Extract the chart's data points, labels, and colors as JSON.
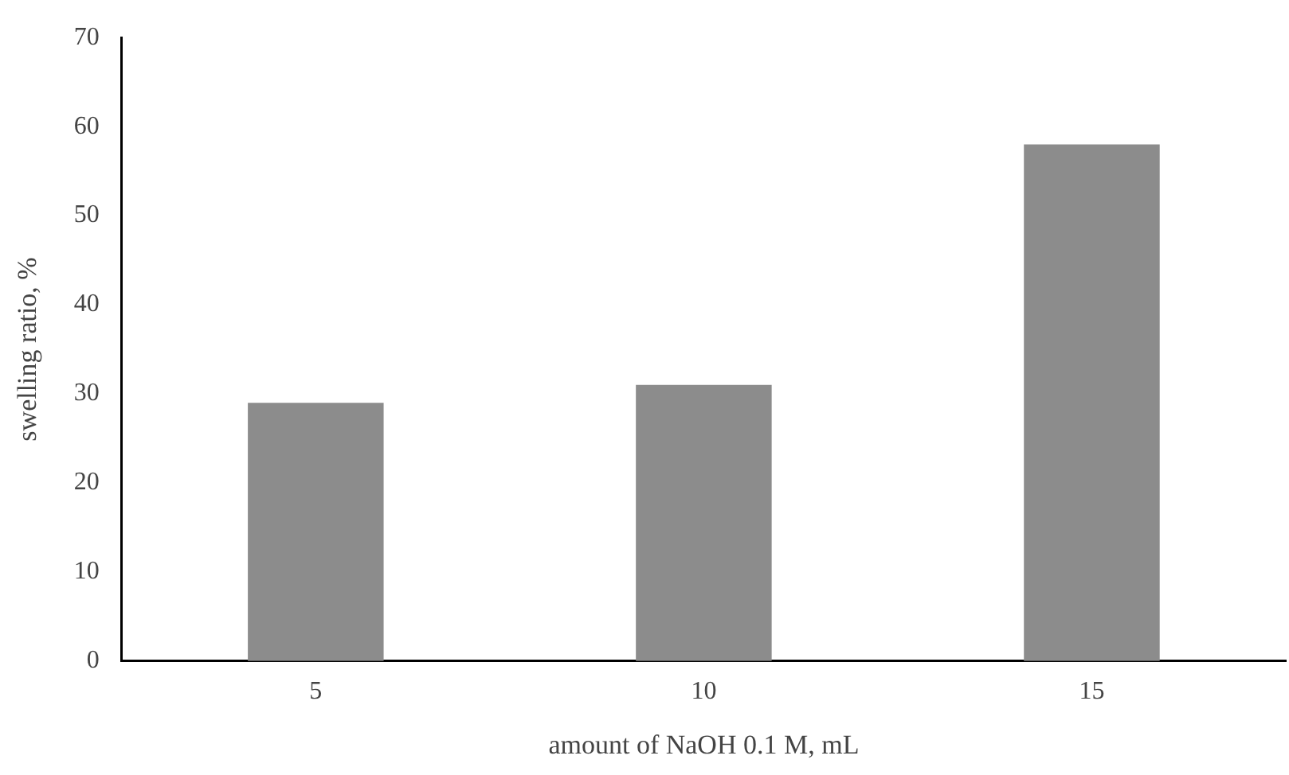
{
  "chart_data": {
    "type": "bar",
    "xlabel": "amount of NaOH 0.1 M, mL",
    "ylabel": "swelling ratio, %",
    "categories": [
      "5",
      "10",
      "15"
    ],
    "values": [
      29,
      31,
      58
    ],
    "color": "#8c8c8c",
    "ylim": [
      0,
      70
    ],
    "yticks": [
      0,
      10,
      20,
      30,
      40,
      50,
      60,
      70
    ],
    "grid": false,
    "legend": false
  }
}
